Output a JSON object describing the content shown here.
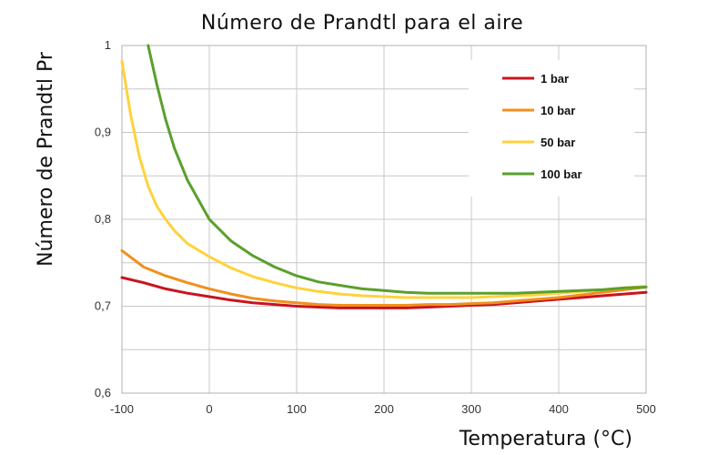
{
  "chart_data": {
    "type": "line",
    "title": "Número de Prandtl para el aire",
    "xlabel": "Temperatura (°C)",
    "ylabel": "Número de Prandtl Pr",
    "xlim": [
      -100,
      500
    ],
    "ylim": [
      0.6,
      1
    ],
    "x_ticks": [
      -100,
      0,
      100,
      200,
      300,
      400,
      500
    ],
    "y_ticks": [
      0.6,
      0.7,
      0.8,
      0.9,
      1.0
    ],
    "x_tick_labels": [
      "-100",
      "0",
      "100",
      "200",
      "300",
      "400",
      "500"
    ],
    "y_tick_labels": [
      "0,6",
      "0,7",
      "0,8",
      "0,9",
      "1"
    ],
    "grid": true,
    "legend_position": "top-right",
    "series": [
      {
        "name": "1 bar",
        "color": "#c8141e",
        "x": [
          -100,
          -75,
          -50,
          -25,
          0,
          25,
          50,
          75,
          100,
          125,
          150,
          175,
          200,
          225,
          250,
          275,
          300,
          325,
          350,
          375,
          400,
          425,
          450,
          475,
          500
        ],
        "y": [
          0.733,
          0.727,
          0.72,
          0.715,
          0.711,
          0.707,
          0.704,
          0.702,
          0.7,
          0.699,
          0.698,
          0.698,
          0.698,
          0.698,
          0.699,
          0.7,
          0.701,
          0.702,
          0.704,
          0.706,
          0.708,
          0.71,
          0.712,
          0.714,
          0.716
        ]
      },
      {
        "name": "10 bar",
        "color": "#f0901e",
        "x": [
          -100,
          -75,
          -50,
          -25,
          0,
          25,
          50,
          75,
          100,
          125,
          150,
          175,
          200,
          225,
          250,
          275,
          300,
          325,
          350,
          375,
          400,
          425,
          450,
          475,
          500
        ],
        "y": [
          0.764,
          0.745,
          0.735,
          0.727,
          0.72,
          0.714,
          0.709,
          0.706,
          0.704,
          0.702,
          0.701,
          0.701,
          0.701,
          0.701,
          0.702,
          0.702,
          0.703,
          0.704,
          0.706,
          0.708,
          0.71,
          0.713,
          0.716,
          0.719,
          0.722
        ]
      },
      {
        "name": "50 bar",
        "color": "#ffd23c",
        "x": [
          -100,
          -90,
          -80,
          -70,
          -60,
          -50,
          -40,
          -25,
          0,
          25,
          50,
          75,
          100,
          125,
          150,
          175,
          200,
          225,
          250,
          275,
          300,
          325,
          350,
          375,
          400,
          425,
          450,
          475,
          500
        ],
        "y": [
          0.982,
          0.92,
          0.872,
          0.838,
          0.815,
          0.8,
          0.787,
          0.772,
          0.757,
          0.744,
          0.734,
          0.727,
          0.721,
          0.717,
          0.714,
          0.712,
          0.711,
          0.71,
          0.71,
          0.71,
          0.71,
          0.711,
          0.712,
          0.713,
          0.715,
          0.717,
          0.719,
          0.721,
          0.723
        ]
      },
      {
        "name": "100 bar",
        "color": "#5aa02d",
        "x": [
          -70,
          -60,
          -50,
          -40,
          -25,
          0,
          25,
          50,
          75,
          100,
          125,
          150,
          175,
          200,
          225,
          250,
          275,
          300,
          325,
          350,
          375,
          400,
          425,
          450,
          475,
          500
        ],
        "y": [
          1.0,
          0.955,
          0.915,
          0.882,
          0.845,
          0.8,
          0.775,
          0.758,
          0.745,
          0.735,
          0.728,
          0.724,
          0.72,
          0.718,
          0.716,
          0.715,
          0.715,
          0.715,
          0.715,
          0.715,
          0.716,
          0.717,
          0.718,
          0.719,
          0.721,
          0.722
        ]
      }
    ]
  }
}
